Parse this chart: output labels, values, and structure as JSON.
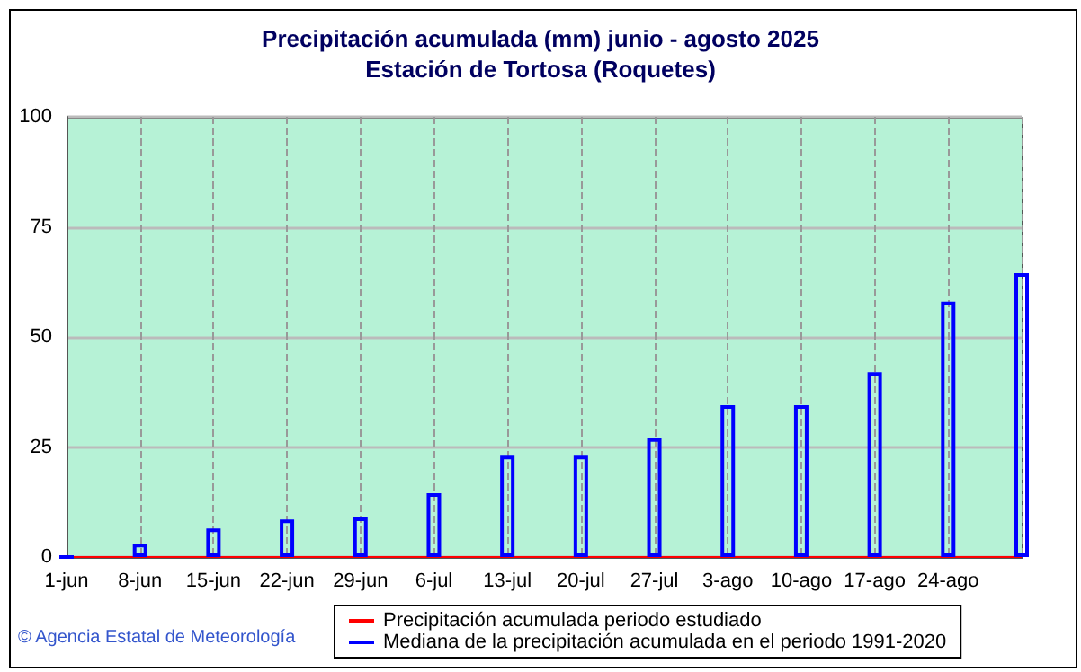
{
  "chart_data": {
    "type": "bar",
    "title": "Precipitación acumulada (mm) junio - agosto 2025",
    "subtitle": "Estación de Tortosa (Roquetes)",
    "categories": [
      "1-jun",
      "8-jun",
      "15-jun",
      "22-jun",
      "29-jun",
      "6-jul",
      "13-jul",
      "20-jul",
      "27-jul",
      "3-ago",
      "10-ago",
      "17-ago",
      "24-ago",
      null
    ],
    "series": [
      {
        "name": "Precipitación acumulada periodo estudiado",
        "type": "line",
        "color": "#ff0000",
        "values": [
          0,
          0,
          0,
          0,
          0,
          0,
          0,
          0,
          0,
          0,
          0,
          0,
          0,
          0
        ]
      },
      {
        "name": "Mediana de la precipitación acumulada en el periodo 1991-2020",
        "color": "#0000ff",
        "values": [
          0,
          3,
          6.5,
          8.5,
          9,
          14.5,
          23,
          23,
          27,
          34.5,
          34.5,
          42,
          58,
          64.5
        ]
      }
    ],
    "ylim": [
      0,
      100
    ],
    "yticks": [
      0,
      25,
      50,
      75,
      100
    ],
    "grid": true,
    "legend": "bottom",
    "marker": "none",
    "annotations": [
      "© Agencia Estatal de Meteorología"
    ]
  }
}
